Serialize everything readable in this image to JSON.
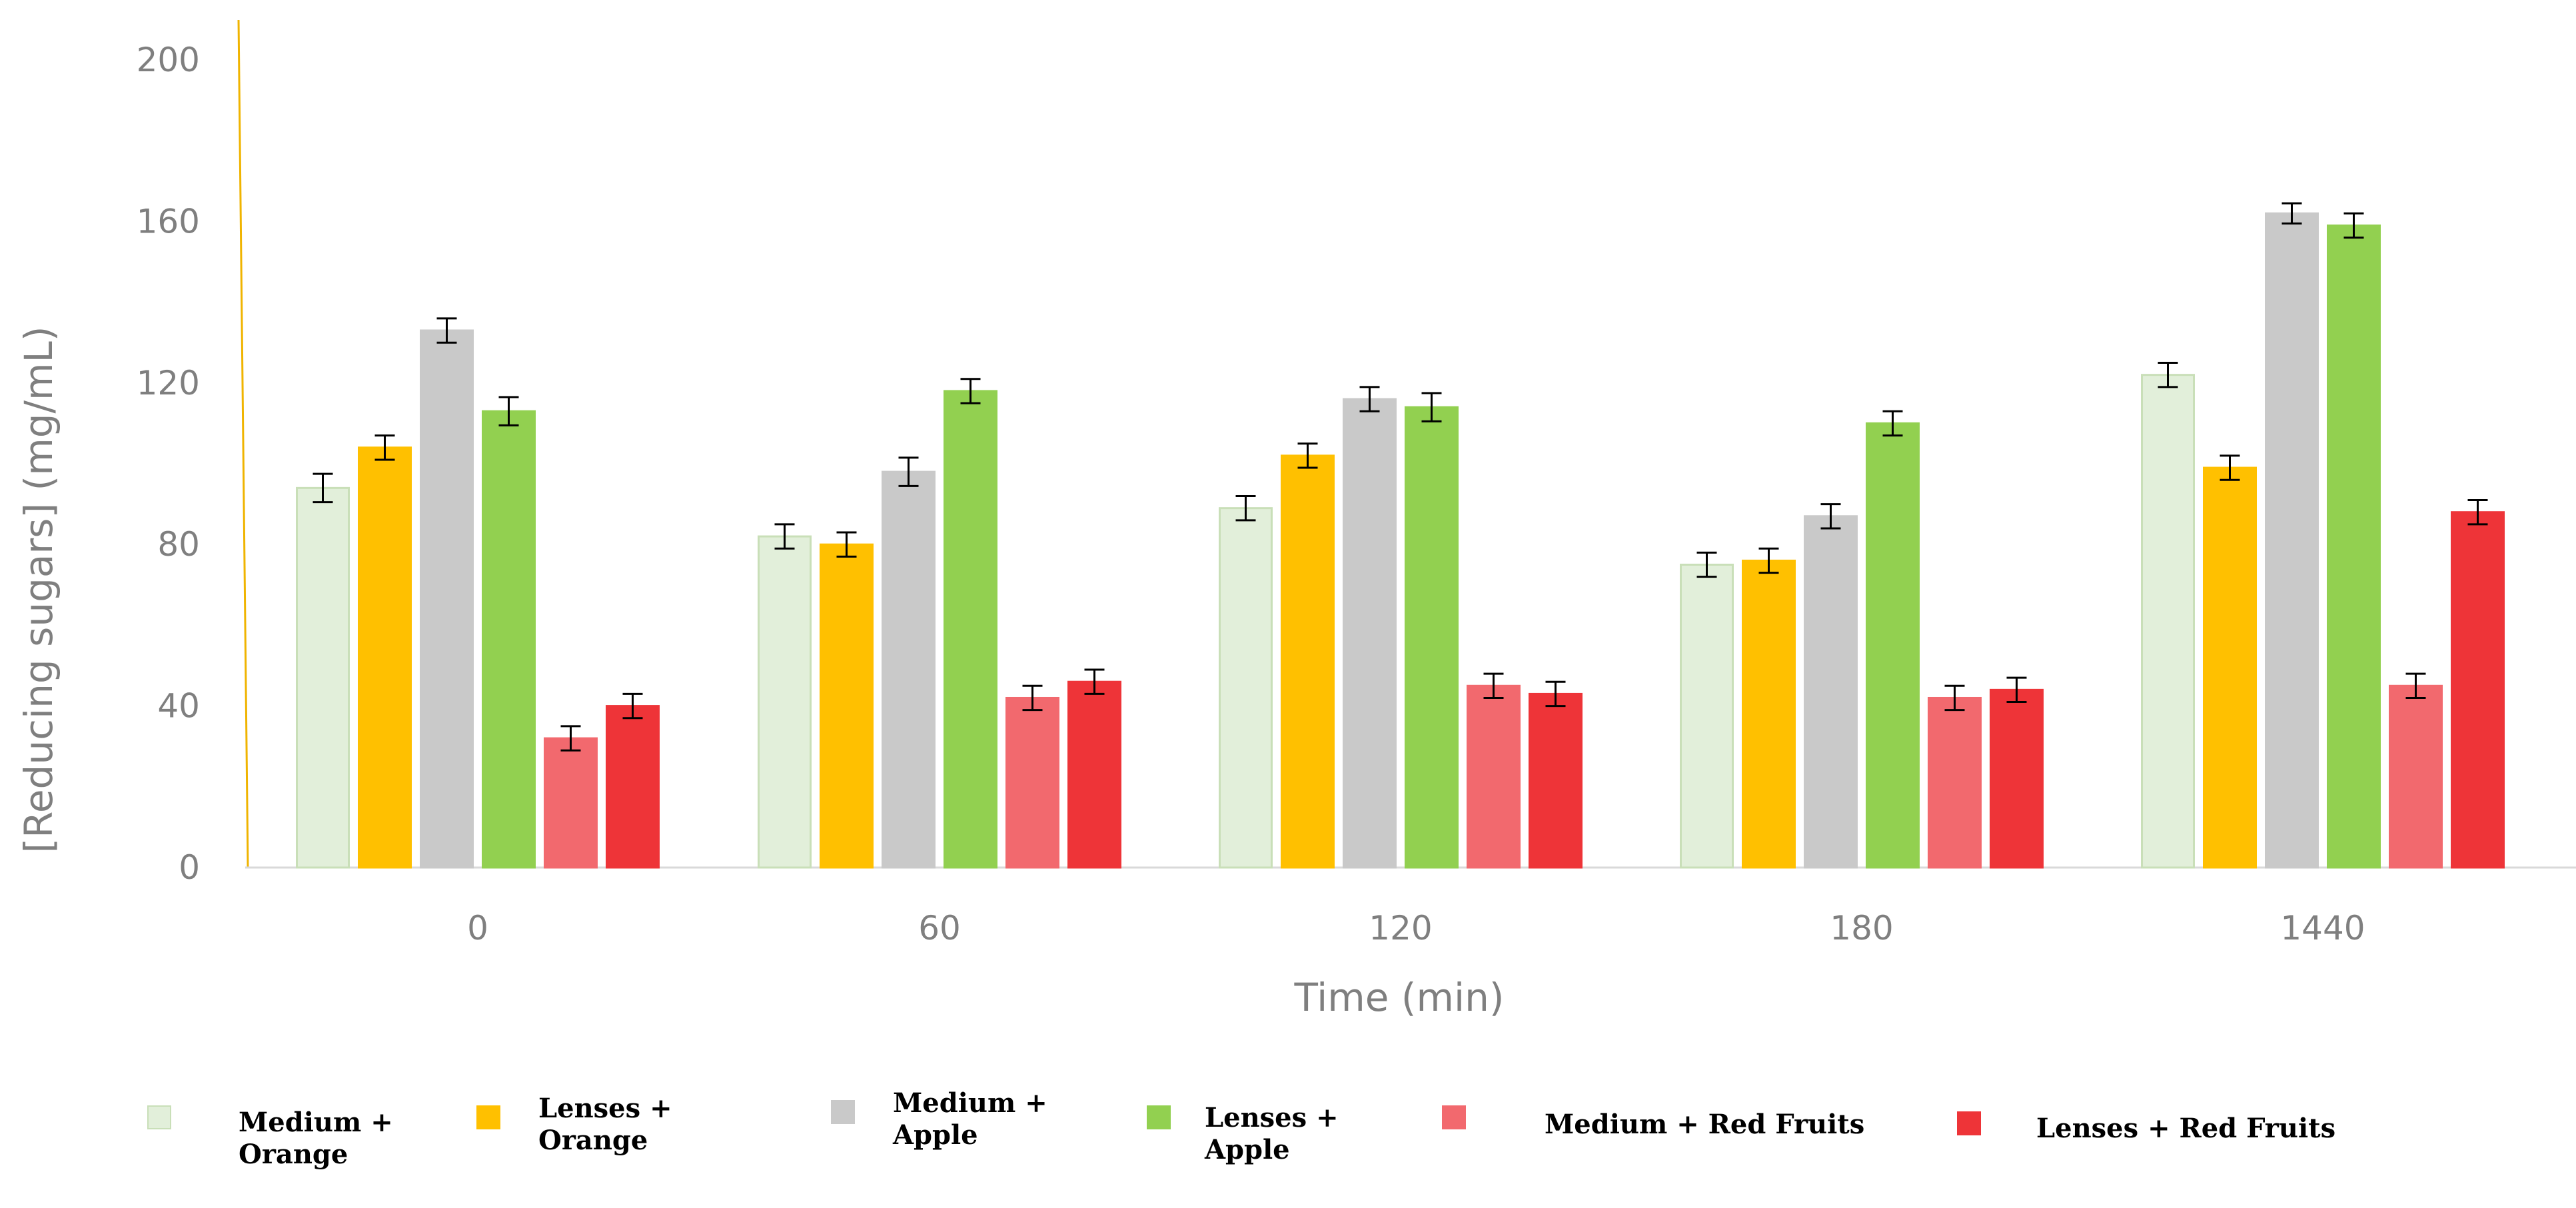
{
  "chart_data": {
    "type": "bar",
    "title": "",
    "xlabel": "Time (min)",
    "ylabel": "[Reducing sugars] (mg/mL)",
    "ylim": [
      0,
      200
    ],
    "yticks": [
      0,
      40,
      80,
      120,
      160,
      200
    ],
    "grid": false,
    "error_bars": true,
    "legend_position": "bottom",
    "categories": [
      "0",
      "60",
      "120",
      "180",
      "1440"
    ],
    "series": [
      {
        "name": "Medium + Orange",
        "label_lines": [
          "Medium +",
          "Orange"
        ],
        "color": "#e2efda",
        "edge": "#c9dfb8",
        "values": [
          94,
          82,
          89,
          75,
          122
        ],
        "errors": [
          3.5,
          3,
          3,
          3,
          3
        ]
      },
      {
        "name": "Lenses + Orange",
        "label_lines": [
          "Lenses +",
          "Orange"
        ],
        "color": "#ffc000",
        "edge": "#ffc000",
        "values": [
          104,
          80,
          102,
          76,
          99
        ],
        "errors": [
          3,
          3,
          3,
          3,
          3
        ]
      },
      {
        "name": "Medium + Apple",
        "label_lines": [
          "Medium +",
          "Apple"
        ],
        "color": "#c9c9c9",
        "edge": "#c9c9c9",
        "values": [
          133,
          98,
          116,
          87,
          162
        ],
        "errors": [
          3,
          3.5,
          3,
          3,
          2.5
        ]
      },
      {
        "name": "Lenses + Apple",
        "label_lines": [
          "Lenses +",
          "Apple"
        ],
        "color": "#92d050",
        "edge": "#92d050",
        "values": [
          113,
          118,
          114,
          110,
          159
        ],
        "errors": [
          3.5,
          3,
          3.5,
          3,
          3
        ]
      },
      {
        "name": "Medium + Red Fruits",
        "label_lines": [
          "Medium + Red Fruits"
        ],
        "color": "#f2696e",
        "edge": "#f2696e",
        "values": [
          32,
          42,
          45,
          42,
          45
        ],
        "errors": [
          3,
          3,
          3,
          3,
          3
        ]
      },
      {
        "name": "Lenses + Red Fruits",
        "label_lines": [
          "Lenses + Red Fruits"
        ],
        "color": "#ee3438",
        "edge": "#ee3438",
        "values": [
          40,
          46,
          43,
          44,
          88
        ],
        "errors": [
          3,
          3,
          3,
          3,
          3
        ]
      }
    ]
  }
}
